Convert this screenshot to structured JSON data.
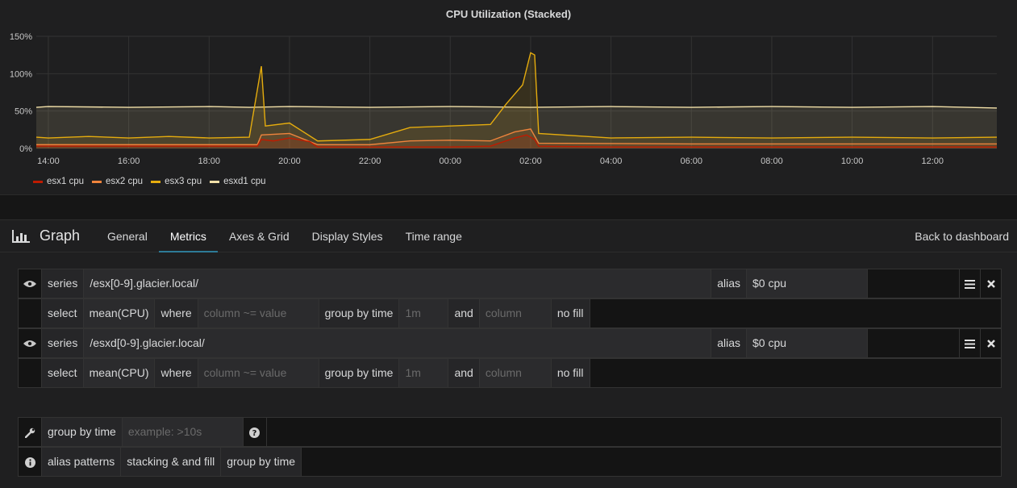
{
  "panel": {
    "title": "CPU Utilization (Stacked)"
  },
  "chart_data": {
    "type": "area",
    "stacked": true,
    "title": "CPU Utilization (Stacked)",
    "y_ticks": [
      "150%",
      "100%",
      "50%",
      "0%"
    ],
    "ylim": [
      0,
      150
    ],
    "x_ticks": [
      "14:00",
      "16:00",
      "18:00",
      "20:00",
      "22:00",
      "00:00",
      "02:00",
      "04:00",
      "06:00",
      "08:00",
      "10:00",
      "12:00"
    ],
    "x_hours": [
      14,
      16,
      18,
      20,
      22,
      24,
      26,
      28,
      30,
      32,
      34,
      36
    ],
    "xlim_hours": [
      13.7,
      37.6
    ],
    "grid": true,
    "legend_position": "bottom-left",
    "series": [
      {
        "name": "esx1 cpu",
        "color": "#bf1b00",
        "points": [
          [
            13.7,
            3
          ],
          [
            14,
            3
          ],
          [
            16,
            3
          ],
          [
            18,
            3
          ],
          [
            19.2,
            3
          ],
          [
            19.3,
            12
          ],
          [
            19.6,
            10
          ],
          [
            20,
            14
          ],
          [
            20.5,
            9
          ],
          [
            20.7,
            2
          ],
          [
            23,
            2
          ],
          [
            24,
            2
          ],
          [
            25,
            3
          ],
          [
            25.6,
            14
          ],
          [
            25.9,
            18
          ],
          [
            26.1,
            12
          ],
          [
            26.2,
            3
          ],
          [
            28,
            2
          ],
          [
            32,
            2
          ],
          [
            36,
            2
          ],
          [
            37.6,
            2
          ]
        ]
      },
      {
        "name": "esx2 cpu",
        "color": "#ef843c",
        "points": [
          [
            13.7,
            5
          ],
          [
            14,
            5
          ],
          [
            16,
            5
          ],
          [
            18,
            5
          ],
          [
            19.2,
            5
          ],
          [
            19.3,
            18
          ],
          [
            20,
            20
          ],
          [
            20.7,
            5
          ],
          [
            22,
            5
          ],
          [
            23,
            10
          ],
          [
            24,
            11
          ],
          [
            25,
            10
          ],
          [
            25.6,
            22
          ],
          [
            26,
            26
          ],
          [
            26.2,
            7
          ],
          [
            30,
            6
          ],
          [
            34,
            6
          ],
          [
            37.6,
            6
          ]
        ]
      },
      {
        "name": "esx3 cpu",
        "color": "#e5ac0e",
        "points": [
          [
            13.7,
            15
          ],
          [
            14,
            14
          ],
          [
            15,
            16
          ],
          [
            16,
            14
          ],
          [
            17,
            16
          ],
          [
            18,
            14
          ],
          [
            19,
            15
          ],
          [
            19.3,
            110
          ],
          [
            19.4,
            30
          ],
          [
            20,
            34
          ],
          [
            20.7,
            10
          ],
          [
            22,
            12
          ],
          [
            23,
            28
          ],
          [
            24,
            30
          ],
          [
            25,
            32
          ],
          [
            25.4,
            60
          ],
          [
            25.8,
            85
          ],
          [
            26.0,
            128
          ],
          [
            26.1,
            125
          ],
          [
            26.2,
            20
          ],
          [
            28,
            14
          ],
          [
            30,
            15
          ],
          [
            32,
            14
          ],
          [
            34,
            15
          ],
          [
            36,
            14
          ],
          [
            37.6,
            15
          ]
        ]
      },
      {
        "name": "esxd1 cpu",
        "color": "#f2e0a8",
        "points": [
          [
            13.7,
            55
          ],
          [
            14,
            56
          ],
          [
            16,
            55
          ],
          [
            18,
            56
          ],
          [
            19,
            55
          ],
          [
            20,
            56
          ],
          [
            22,
            55
          ],
          [
            24,
            56
          ],
          [
            26,
            55
          ],
          [
            28,
            56
          ],
          [
            30,
            55
          ],
          [
            32,
            56
          ],
          [
            34,
            55
          ],
          [
            36,
            56
          ],
          [
            37.6,
            54
          ]
        ]
      }
    ]
  },
  "editor": {
    "title": "Graph",
    "tabs": [
      "General",
      "Metrics",
      "Axes & Grid",
      "Display Styles",
      "Time range"
    ],
    "active_tab": "Metrics",
    "back": "Back to dashboard"
  },
  "queries": [
    {
      "series_label": "series",
      "series": "/esx[0-9].glacier.local/",
      "alias_label": "alias",
      "alias": "$0 cpu",
      "select_label": "select",
      "select": "mean(CPU)",
      "where_label": "where",
      "where_placeholder": "column ~= value",
      "group_label": "group by time",
      "group_placeholder": "1m",
      "and_label": "and",
      "column_placeholder": "column",
      "fill": "no fill"
    },
    {
      "series_label": "series",
      "series": "/esxd[0-9].glacier.local/",
      "alias_label": "alias",
      "alias": "$0 cpu",
      "select_label": "select",
      "select": "mean(CPU)",
      "where_label": "where",
      "where_placeholder": "column ~= value",
      "group_label": "group by time",
      "group_placeholder": "1m",
      "and_label": "and",
      "column_placeholder": "column",
      "fill": "no fill"
    }
  ],
  "options": {
    "group_label": "group by time",
    "group_placeholder": "example: >10s",
    "help_items": [
      "alias patterns",
      "stacking & and fill",
      "group by time"
    ]
  },
  "icons": {
    "graph": "bar-chart-icon",
    "eye": "eye-icon",
    "menu": "hamburger-icon",
    "close": "close-icon",
    "wrench": "wrench-icon",
    "help": "question-icon",
    "info": "info-icon"
  }
}
